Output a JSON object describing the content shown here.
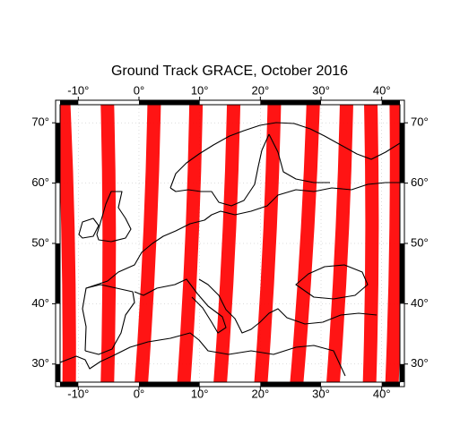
{
  "chart_data": {
    "type": "map",
    "title": "Ground Track GRACE, October 2016",
    "xlim": [
      -13,
      43
    ],
    "ylim": [
      27,
      73
    ],
    "xticks": [
      {
        "value": -10,
        "label": "-10°"
      },
      {
        "value": 0,
        "label": "0°"
      },
      {
        "value": 10,
        "label": "10°"
      },
      {
        "value": 20,
        "label": "20°"
      },
      {
        "value": 30,
        "label": "30°"
      },
      {
        "value": 40,
        "label": "40°"
      }
    ],
    "yticks": [
      {
        "value": 30,
        "label": "30°"
      },
      {
        "value": 40,
        "label": "40°"
      },
      {
        "value": 50,
        "label": "50°"
      },
      {
        "value": 60,
        "label": "60°"
      },
      {
        "value": 70,
        "label": "70°"
      }
    ],
    "grid": true,
    "track_color": "#ff0000",
    "tracks": [
      {
        "lon_top": -12.4,
        "lon_bottom": -11.5
      },
      {
        "lon_top": -5.2,
        "lon_bottom": -5.2
      },
      {
        "lon_top": 2.5,
        "lon_bottom": 0.4
      },
      {
        "lon_top": 9.4,
        "lon_bottom": 7.4
      },
      {
        "lon_top": 15.6,
        "lon_bottom": 13.4
      },
      {
        "lon_top": 22.3,
        "lon_bottom": 20.1
      },
      {
        "lon_top": 28.7,
        "lon_bottom": 26
      },
      {
        "lon_top": 34.2,
        "lon_bottom": 32
      },
      {
        "lon_top": 38.2,
        "lon_bottom": 38
      },
      {
        "lon_top": 42.4,
        "lon_bottom": 41.7
      }
    ]
  }
}
